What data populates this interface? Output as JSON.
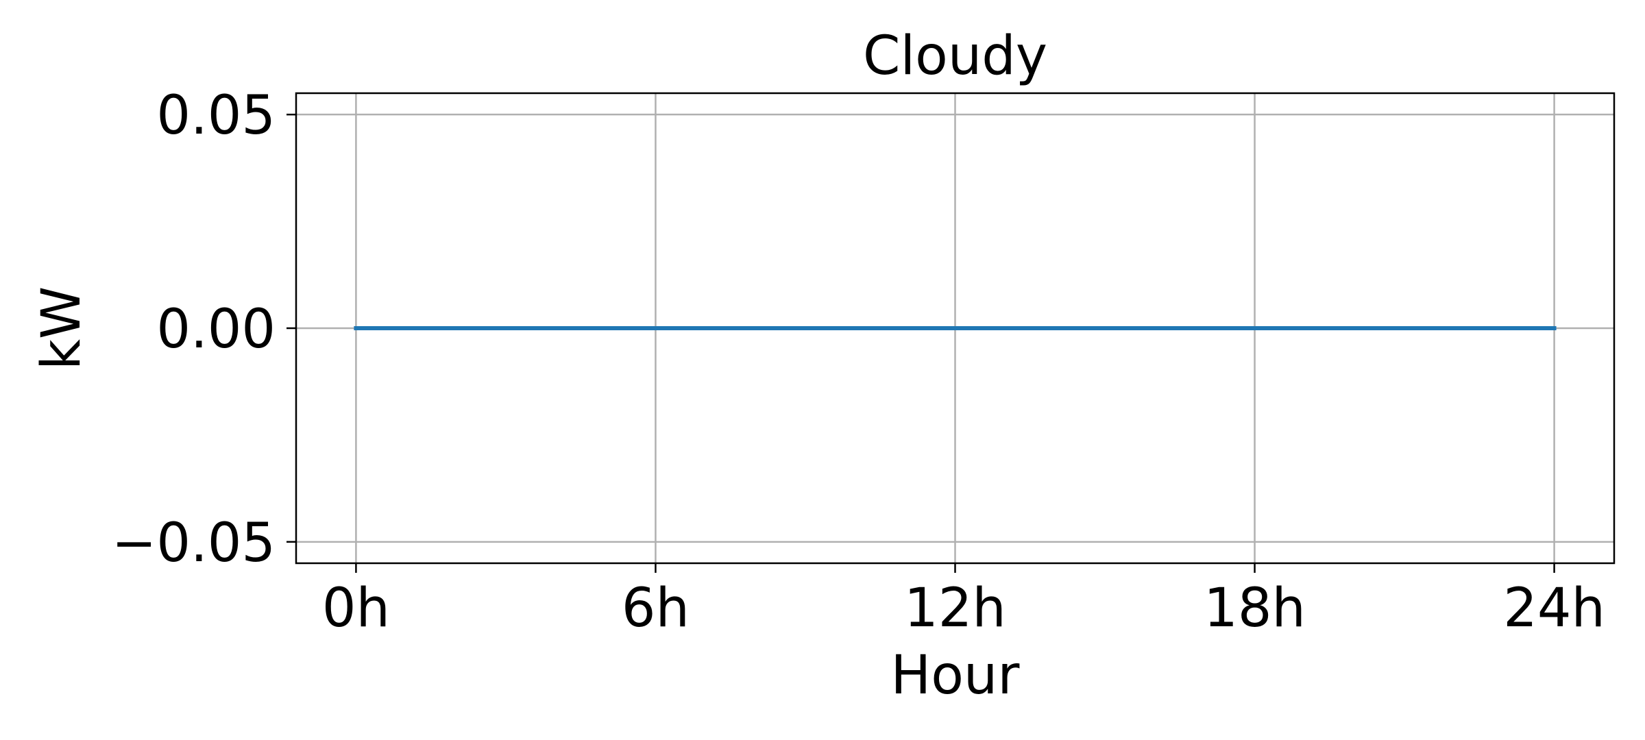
{
  "chart_data": {
    "type": "line",
    "title": "Cloudy",
    "xlabel": "Hour",
    "ylabel": "kW",
    "x": [
      0,
      1,
      2,
      3,
      4,
      5,
      6,
      7,
      8,
      9,
      10,
      11,
      12,
      13,
      14,
      15,
      16,
      17,
      18,
      19,
      20,
      21,
      22,
      23,
      24
    ],
    "series": [
      {
        "color": "#1f77b4",
        "values": [
          0,
          0,
          0,
          0,
          0,
          0,
          0,
          0,
          0,
          0,
          0,
          0,
          0,
          0,
          0,
          0,
          0,
          0,
          0,
          0,
          0,
          0,
          0,
          0,
          0
        ]
      }
    ],
    "xticks": [
      0,
      6,
      12,
      18,
      24
    ],
    "xtick_labels": [
      "0h",
      "6h",
      "12h",
      "18h",
      "24h"
    ],
    "yticks": [
      -0.05,
      0,
      0.05
    ],
    "ytick_labels": [
      "−0.05",
      "0.00",
      "0.05"
    ],
    "xlim": [
      -1.2,
      25.2
    ],
    "ylim": [
      -0.055,
      0.055
    ],
    "grid": true,
    "colors": {
      "grid": "#b0b0b0",
      "axes": "#000000"
    }
  }
}
